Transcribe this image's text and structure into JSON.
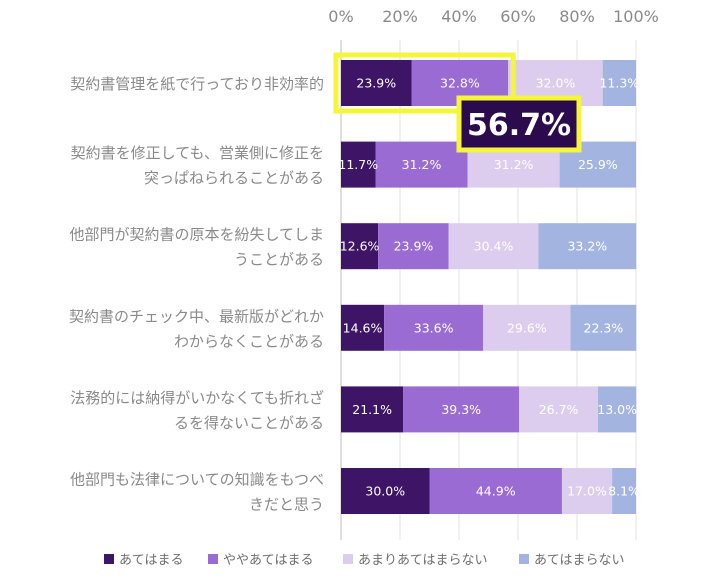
{
  "chart_data": {
    "type": "bar",
    "orientation": "horizontal",
    "stacked": true,
    "percent": true,
    "xlim": [
      0,
      100
    ],
    "x_ticks": [
      "0%",
      "20%",
      "40%",
      "60%",
      "80%",
      "100%"
    ],
    "grid": true,
    "legend_position": "bottom",
    "categories": [
      [
        "契約書管理を紙で行っており非効率的"
      ],
      [
        "契約書を修正しても、営業側に修正を",
        "突っぱねられることがある"
      ],
      [
        "他部門が契約書の原本を紛失してしま",
        "うことがある"
      ],
      [
        "契約書のチェック中、最新版がどれか",
        "わからなくことがある"
      ],
      [
        "法務的には納得がいかなくても折れざ",
        "るを得ないことがある"
      ],
      [
        "他部門も法律についての知識をもつべ",
        "きだと思う"
      ]
    ],
    "series": [
      {
        "name": "あてはまる",
        "color": "#3e1466",
        "label_color": "#ffffff",
        "values": [
          23.9,
          11.7,
          12.6,
          14.6,
          21.1,
          30.0
        ],
        "labels": [
          "23.9%",
          "11.7%",
          "12.6%",
          "14.6%",
          "21.1%",
          "30.0%"
        ]
      },
      {
        "name": "ややあてはまる",
        "color": "#9b6bd4",
        "label_color": "#ffffff",
        "values": [
          32.8,
          31.2,
          23.9,
          33.6,
          39.3,
          44.9
        ],
        "labels": [
          "32.8%",
          "31.2%",
          "23.9%",
          "33.6%",
          "39.3%",
          "44.9%"
        ]
      },
      {
        "name": "あまりあてはまらない",
        "color": "#dccdee",
        "label_color": "#ffffff",
        "values": [
          32.0,
          31.2,
          30.4,
          29.6,
          26.7,
          17.0
        ],
        "labels": [
          "32.0%",
          "31.2%",
          "30.4%",
          "29.6%",
          "26.7%",
          "17.0%"
        ]
      },
      {
        "name": "あてはまらない",
        "color": "#a4b4e0",
        "label_color": "#ffffff",
        "values": [
          11.3,
          25.9,
          33.2,
          22.3,
          13.0,
          8.1
        ],
        "labels": [
          "11.3%",
          "25.9%",
          "33.2%",
          "22.3%",
          "13.0%",
          "8.1%"
        ]
      }
    ],
    "annotation": {
      "text": "56.7%",
      "category_index": 0,
      "series_indices": [
        0,
        1
      ],
      "box_color": "#2b0b4e",
      "outline_color": "#f5f53a"
    }
  }
}
